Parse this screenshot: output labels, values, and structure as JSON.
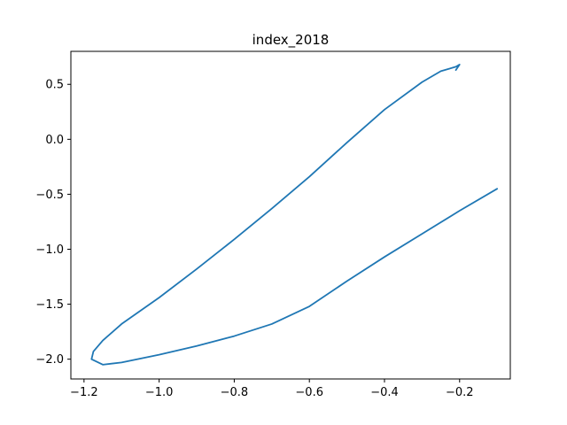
{
  "chart_data": {
    "type": "line",
    "title": "index_2018",
    "xlabel": "",
    "ylabel": "",
    "xlim": [
      -1.235,
      -0.065
    ],
    "ylim": [
      -2.18,
      0.8
    ],
    "x_ticks": [
      -1.2,
      -1.0,
      -0.8,
      -0.6,
      -0.4,
      -0.2
    ],
    "x_tick_labels": [
      "−1.2",
      "−1.0",
      "−0.8",
      "−0.6",
      "−0.4",
      "−0.2"
    ],
    "y_ticks": [
      0.5,
      0.0,
      -0.5,
      -1.0,
      -1.5,
      -2.0
    ],
    "y_tick_labels": [
      "0.5",
      "0.0",
      "−0.5",
      "−1.0",
      "−1.5",
      "−2.0"
    ],
    "grid": false,
    "series": [
      {
        "color": "#1f77b4",
        "x": [
          -0.1,
          -0.2,
          -0.3,
          -0.4,
          -0.5,
          -0.6,
          -0.7,
          -0.8,
          -0.9,
          -1.0,
          -1.1,
          -1.15,
          -1.18,
          -1.175,
          -1.15,
          -1.1,
          -1.0,
          -0.9,
          -0.8,
          -0.7,
          -0.6,
          -0.5,
          -0.4,
          -0.3,
          -0.25,
          -0.21,
          -0.2,
          -0.21
        ],
        "y": [
          -0.45,
          -0.65,
          -0.86,
          -1.07,
          -1.29,
          -1.52,
          -1.68,
          -1.79,
          -1.88,
          -1.96,
          -2.03,
          -2.05,
          -2.0,
          -1.93,
          -1.83,
          -1.68,
          -1.44,
          -1.18,
          -0.91,
          -0.63,
          -0.34,
          -0.03,
          0.27,
          0.52,
          0.62,
          0.66,
          0.68,
          0.63
        ]
      }
    ]
  }
}
